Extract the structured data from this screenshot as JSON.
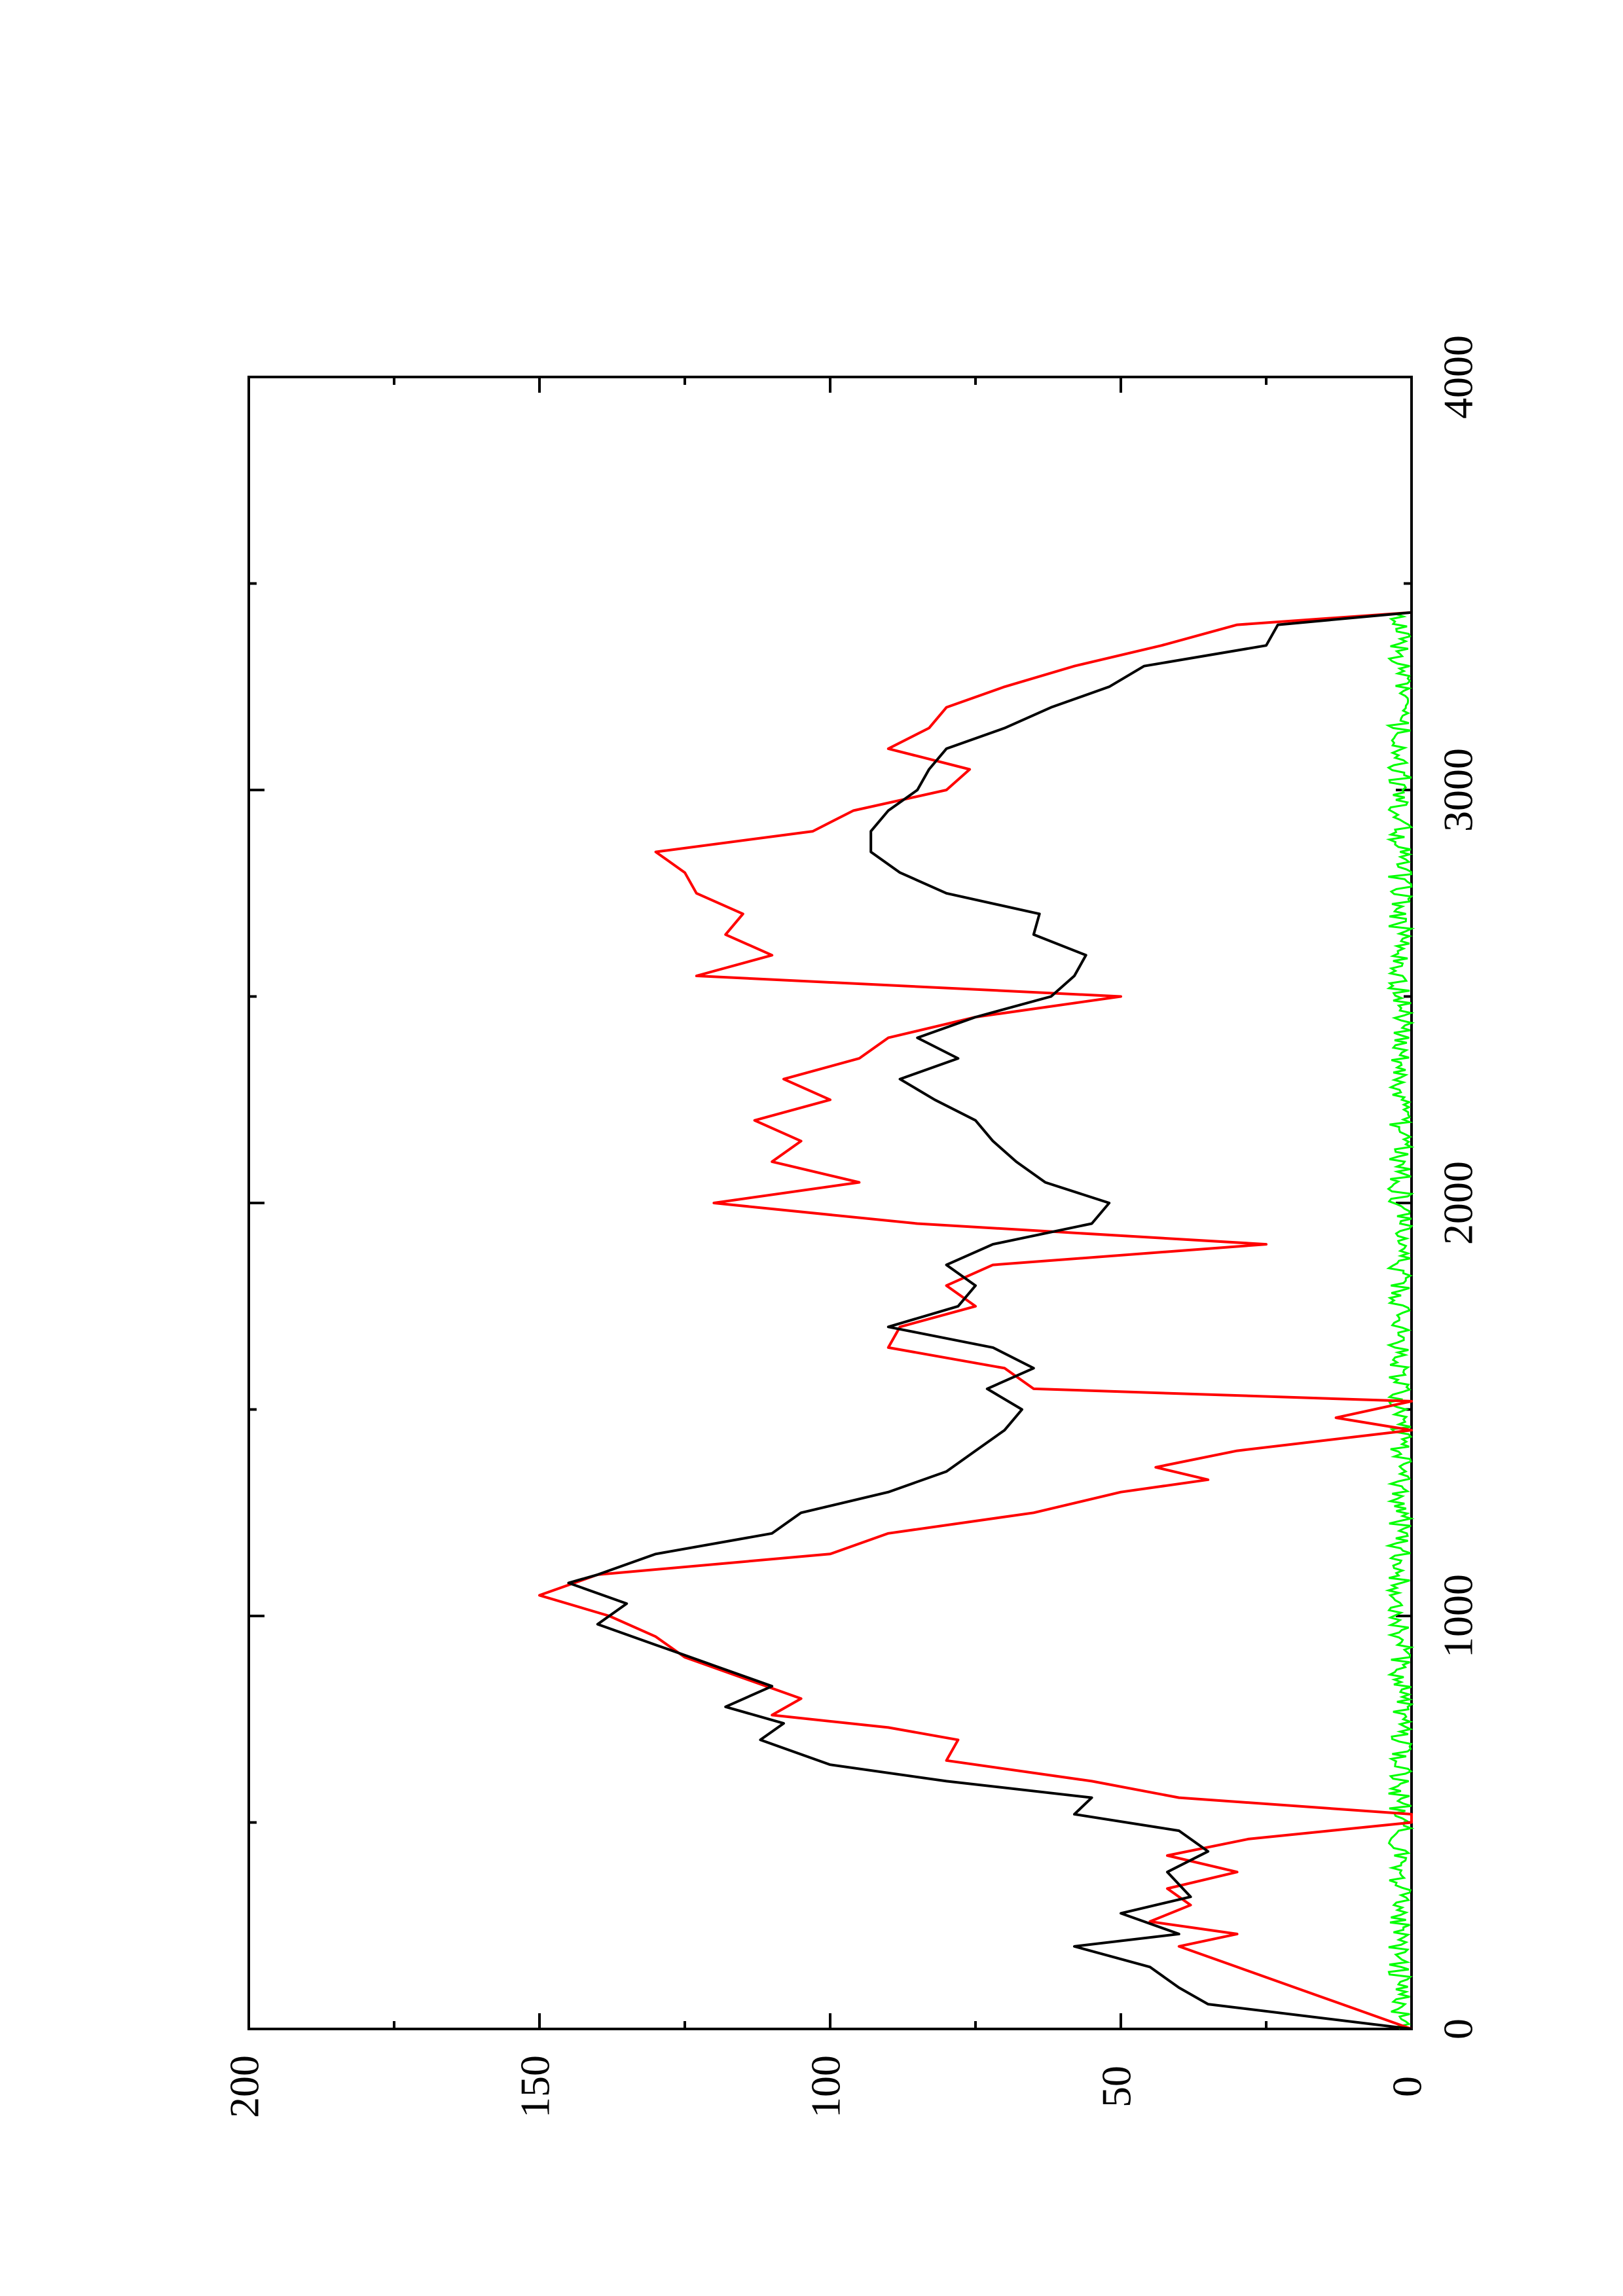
{
  "chart_data": {
    "type": "line",
    "title": "",
    "xlabel": "",
    "ylabel": "",
    "orientation": "rotated 90 degrees counter-clockwise (page portrait, plot landscape)",
    "xlim": [
      0,
      4000
    ],
    "ylim": [
      0,
      200
    ],
    "x_ticks": [
      0,
      1000,
      2000,
      3000,
      4000
    ],
    "x_tick_labels": [
      "0",
      "1000",
      "2000",
      "3000",
      "4000"
    ],
    "x_minor_ticks": [
      500,
      1500,
      2500,
      3500
    ],
    "y_ticks": [
      0,
      50,
      100,
      150,
      200
    ],
    "y_tick_labels": [
      "0",
      "50",
      "100",
      "150",
      "200"
    ],
    "y_minor_ticks": [
      25,
      75,
      125,
      175
    ],
    "grid": false,
    "legend": "none",
    "series": [
      {
        "color": "#000000",
        "x": [
          0,
          60,
          100,
          150,
          200,
          230,
          280,
          320,
          380,
          430,
          480,
          520,
          560,
          600,
          640,
          700,
          740,
          780,
          830,
          880,
          930,
          980,
          1030,
          1080,
          1100,
          1150,
          1200,
          1250,
          1300,
          1350,
          1400,
          1450,
          1500,
          1550,
          1600,
          1650,
          1700,
          1750,
          1800,
          1850,
          1900,
          1950,
          2000,
          2050,
          2100,
          2150,
          2200,
          2250,
          2300,
          2350,
          2400,
          2450,
          2500,
          2550,
          2600,
          2650,
          2700,
          2750,
          2800,
          2850,
          2900,
          2950,
          3000,
          3050,
          3100,
          3150,
          3200,
          3250,
          3300,
          3350,
          3400,
          3430
        ],
        "values": [
          0,
          35,
          40,
          45,
          58,
          40,
          50,
          38,
          42,
          35,
          40,
          58,
          55,
          80,
          100,
          112,
          108,
          118,
          110,
          120,
          130,
          140,
          135,
          145,
          140,
          130,
          110,
          105,
          90,
          80,
          75,
          70,
          67,
          73,
          65,
          72,
          90,
          78,
          75,
          80,
          72,
          55,
          52,
          63,
          68,
          72,
          75,
          82,
          88,
          78,
          85,
          75,
          62,
          58,
          56,
          65,
          64,
          80,
          88,
          93,
          93,
          90,
          85,
          83,
          80,
          70,
          62,
          52,
          46,
          25,
          23,
          0
        ]
      },
      {
        "color": "#ff0000",
        "x": [
          0,
          50,
          100,
          150,
          200,
          230,
          260,
          300,
          340,
          380,
          420,
          460,
          500,
          520,
          560,
          600,
          650,
          700,
          730,
          760,
          800,
          850,
          900,
          950,
          1000,
          1050,
          1100,
          1150,
          1200,
          1250,
          1300,
          1330,
          1360,
          1400,
          1450,
          1480,
          1520,
          1550,
          1600,
          1650,
          1700,
          1750,
          1800,
          1850,
          1900,
          1950,
          2000,
          2050,
          2100,
          2150,
          2200,
          2250,
          2300,
          2350,
          2400,
          2450,
          2500,
          2550,
          2600,
          2650,
          2700,
          2750,
          2800,
          2850,
          2900,
          2950,
          3000,
          3050,
          3100,
          3150,
          3200,
          3250,
          3300,
          3350,
          3400,
          3430
        ],
        "values": [
          0,
          10,
          20,
          30,
          40,
          30,
          45,
          38,
          42,
          30,
          42,
          28,
          0,
          0,
          40,
          55,
          80,
          78,
          90,
          110,
          105,
          115,
          125,
          130,
          138,
          150,
          140,
          100,
          90,
          65,
          50,
          35,
          44,
          30,
          0,
          13,
          0,
          65,
          70,
          90,
          88,
          75,
          80,
          72,
          25,
          85,
          120,
          95,
          110,
          105,
          113,
          100,
          108,
          95,
          90,
          75,
          50,
          123,
          110,
          118,
          115,
          123,
          125,
          130,
          103,
          96,
          80,
          76,
          90,
          83,
          80,
          70,
          58,
          43,
          30,
          0
        ]
      },
      {
        "color": "#00ff00",
        "x": [
          0,
          3430
        ],
        "values": [
          0,
          0
        ],
        "note": "noise band fluctuating within about 0-4"
      }
    ]
  }
}
